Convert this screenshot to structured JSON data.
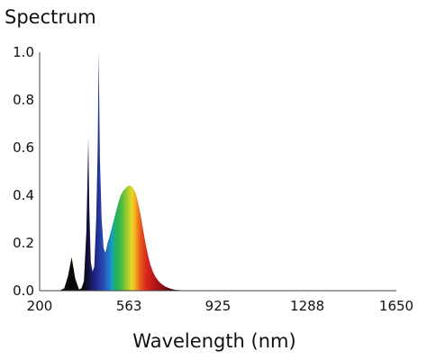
{
  "chart_data": {
    "type": "area",
    "title": "Spectrum",
    "xlabel": "Wavelength (nm)",
    "ylabel": "",
    "xlim": [
      200,
      1650
    ],
    "ylim": [
      0,
      1.0
    ],
    "x_ticks": [
      "200",
      "563",
      "925",
      "1288",
      "1650"
    ],
    "y_ticks": [
      "0.0",
      "0.2",
      "0.4",
      "0.6",
      "0.8",
      "1.0"
    ],
    "grid": false,
    "legend": "none",
    "fill": "wavelength-colored spectrum (violet/blue to red), black outside visible range",
    "series": [
      {
        "x": [
          280,
          300,
          315,
          330,
          345,
          360,
          370,
          380,
          390,
          398,
          402,
          408,
          415,
          422,
          430,
          436,
          440,
          445,
          452,
          460,
          466,
          470,
          476,
          482,
          490,
          500,
          510,
          520,
          530,
          540,
          550,
          560,
          570,
          580,
          590,
          600,
          610,
          620,
          630,
          640,
          650,
          660,
          670,
          680,
          690,
          700,
          710,
          720,
          730,
          740,
          750,
          760,
          780,
          800,
          830,
          860,
          900,
          950,
          1000,
          1100,
          1200,
          1400,
          1650
        ],
        "y": [
          0.0,
          0.01,
          0.06,
          0.14,
          0.05,
          0.005,
          0.01,
          0.04,
          0.25,
          0.64,
          0.34,
          0.12,
          0.08,
          0.1,
          0.3,
          0.6,
          1.0,
          0.55,
          0.3,
          0.18,
          0.16,
          0.17,
          0.2,
          0.22,
          0.25,
          0.29,
          0.33,
          0.37,
          0.4,
          0.42,
          0.43,
          0.44,
          0.44,
          0.43,
          0.41,
          0.37,
          0.32,
          0.26,
          0.2,
          0.15,
          0.11,
          0.08,
          0.06,
          0.045,
          0.033,
          0.025,
          0.018,
          0.013,
          0.009,
          0.006,
          0.004,
          0.003,
          0.002,
          0.001,
          0.0005,
          0.0002,
          0.0,
          0.0,
          0.0,
          0.0,
          0.0,
          0.0,
          0.0
        ]
      }
    ]
  }
}
